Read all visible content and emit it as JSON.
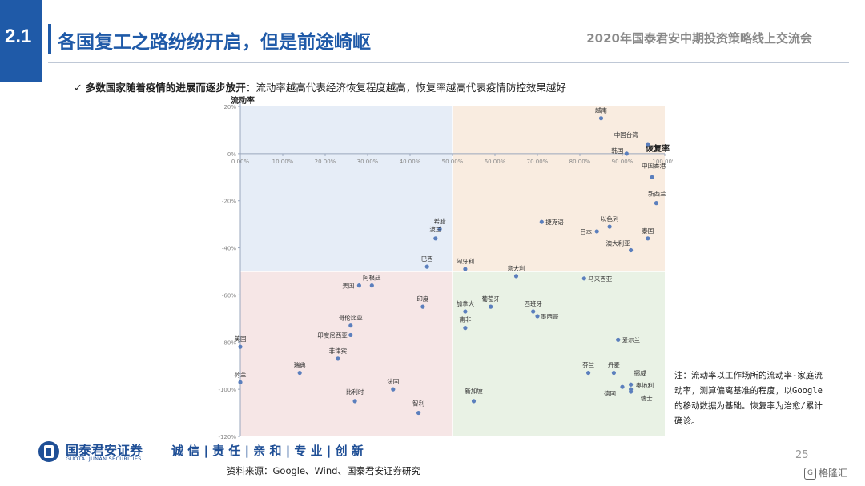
{
  "header": {
    "section_number": "2.1",
    "title": "各国复工之路纷纷开启，但是前途崎岖",
    "event": "2020年国泰君安中期投资策略线上交流会"
  },
  "bullet": {
    "check": "✓",
    "bold_text": "多数国家随着疫情的进展而逐步放开",
    "normal_text": "：流动率越高代表经济恢复程度越高，恢复率越高代表疫情防控效果越好"
  },
  "note": "注：流动率以工作场所的流动率-家庭流动率，测算偏离基准的程度，以Google的移动数据为基础。恢复率为治愈/累计确诊。",
  "footer": {
    "logo_cn": "国泰君安证券",
    "logo_en": "GUOTAI JUNAN SECURITIES",
    "values": [
      "诚",
      "信",
      "责",
      "任",
      "亲",
      "和",
      "专",
      "业",
      "创",
      "新"
    ],
    "values_text": "诚 信 | 责 任 | 亲 和 | 专 业 | 创 新",
    "source": "资料来源：Google、Wind、国泰君安证券研究",
    "page_number": "25",
    "watermark": "格隆汇"
  },
  "colors": {
    "brand": "#1f5aa8",
    "point": "#5b7fbd",
    "quadrant_top_left": "#e6edf7",
    "quadrant_top_right": "#f9ece0",
    "quadrant_bottom_left": "#f6e6e6",
    "quadrant_bottom_right": "#e9f2e5"
  },
  "chart_data": {
    "type": "scatter",
    "xlabel": "恢复率",
    "ylabel": "流动率",
    "xlim": [
      0,
      100
    ],
    "ylim": [
      -120,
      20
    ],
    "x_ticks": [
      "0.00%",
      "10.00%",
      "20.00%",
      "30.00%",
      "40.00%",
      "50.00%",
      "60.00%",
      "70.00%",
      "80.00%",
      "90.00%",
      "100.00%"
    ],
    "y_ticks": [
      "20%",
      "0%",
      "-20%",
      "-40%",
      "-60%",
      "-80%",
      "-100%",
      "-120%"
    ],
    "quadrant_split": {
      "x": 50,
      "y": -50
    },
    "points": [
      {
        "label": "越南",
        "x": 85,
        "y": 15
      },
      {
        "label": "中国台湾",
        "x": 96,
        "y": 4
      },
      {
        "label": "韩国",
        "x": 91,
        "y": 0
      },
      {
        "label": "中国香港",
        "x": 97,
        "y": -10
      },
      {
        "label": "新西兰",
        "x": 98,
        "y": -21
      },
      {
        "label": "捷克语",
        "x": 71,
        "y": -29
      },
      {
        "label": "以色列",
        "x": 87,
        "y": -31
      },
      {
        "label": "日本",
        "x": 84,
        "y": -33
      },
      {
        "label": "泰国",
        "x": 96,
        "y": -36
      },
      {
        "label": "澳大利亚",
        "x": 92,
        "y": -41
      },
      {
        "label": "希腊",
        "x": 47,
        "y": -32
      },
      {
        "label": "波兰",
        "x": 46,
        "y": -36
      },
      {
        "label": "巴西",
        "x": 44,
        "y": -48
      },
      {
        "label": "匈牙利",
        "x": 53,
        "y": -49
      },
      {
        "label": "意大利",
        "x": 65,
        "y": -52
      },
      {
        "label": "马来西亚",
        "x": 81,
        "y": -53
      },
      {
        "label": "阿根廷",
        "x": 31,
        "y": -56
      },
      {
        "label": "美国",
        "x": 28,
        "y": -56
      },
      {
        "label": "印度",
        "x": 43,
        "y": -65
      },
      {
        "label": "加拿大",
        "x": 53,
        "y": -67
      },
      {
        "label": "葡萄牙",
        "x": 59,
        "y": -65
      },
      {
        "label": "西班牙",
        "x": 69,
        "y": -67
      },
      {
        "label": "墨西哥",
        "x": 70,
        "y": -69
      },
      {
        "label": "南非",
        "x": 53,
        "y": -74
      },
      {
        "label": "哥伦比亚",
        "x": 26,
        "y": -73
      },
      {
        "label": "印度尼西亚",
        "x": 26,
        "y": -77
      },
      {
        "label": "英国",
        "x": 0,
        "y": -82
      },
      {
        "label": "菲律宾",
        "x": 23,
        "y": -87
      },
      {
        "label": "爱尔兰",
        "x": 89,
        "y": -79
      },
      {
        "label": "瑞典",
        "x": 14,
        "y": -93
      },
      {
        "label": "荷兰",
        "x": 0,
        "y": -97
      },
      {
        "label": "芬兰",
        "x": 82,
        "y": -93
      },
      {
        "label": "丹麦",
        "x": 88,
        "y": -93
      },
      {
        "label": "挪威",
        "x": 92,
        "y": -98
      },
      {
        "label": "法国",
        "x": 36,
        "y": -100
      },
      {
        "label": "比利时",
        "x": 27,
        "y": -105
      },
      {
        "label": "智利",
        "x": 42,
        "y": -110
      },
      {
        "label": "新加坡",
        "x": 55,
        "y": -105
      },
      {
        "label": "德国",
        "x": 90,
        "y": -99
      },
      {
        "label": "奥地利",
        "x": 92,
        "y": -100
      },
      {
        "label": "瑞士",
        "x": 92,
        "y": -101
      }
    ]
  }
}
